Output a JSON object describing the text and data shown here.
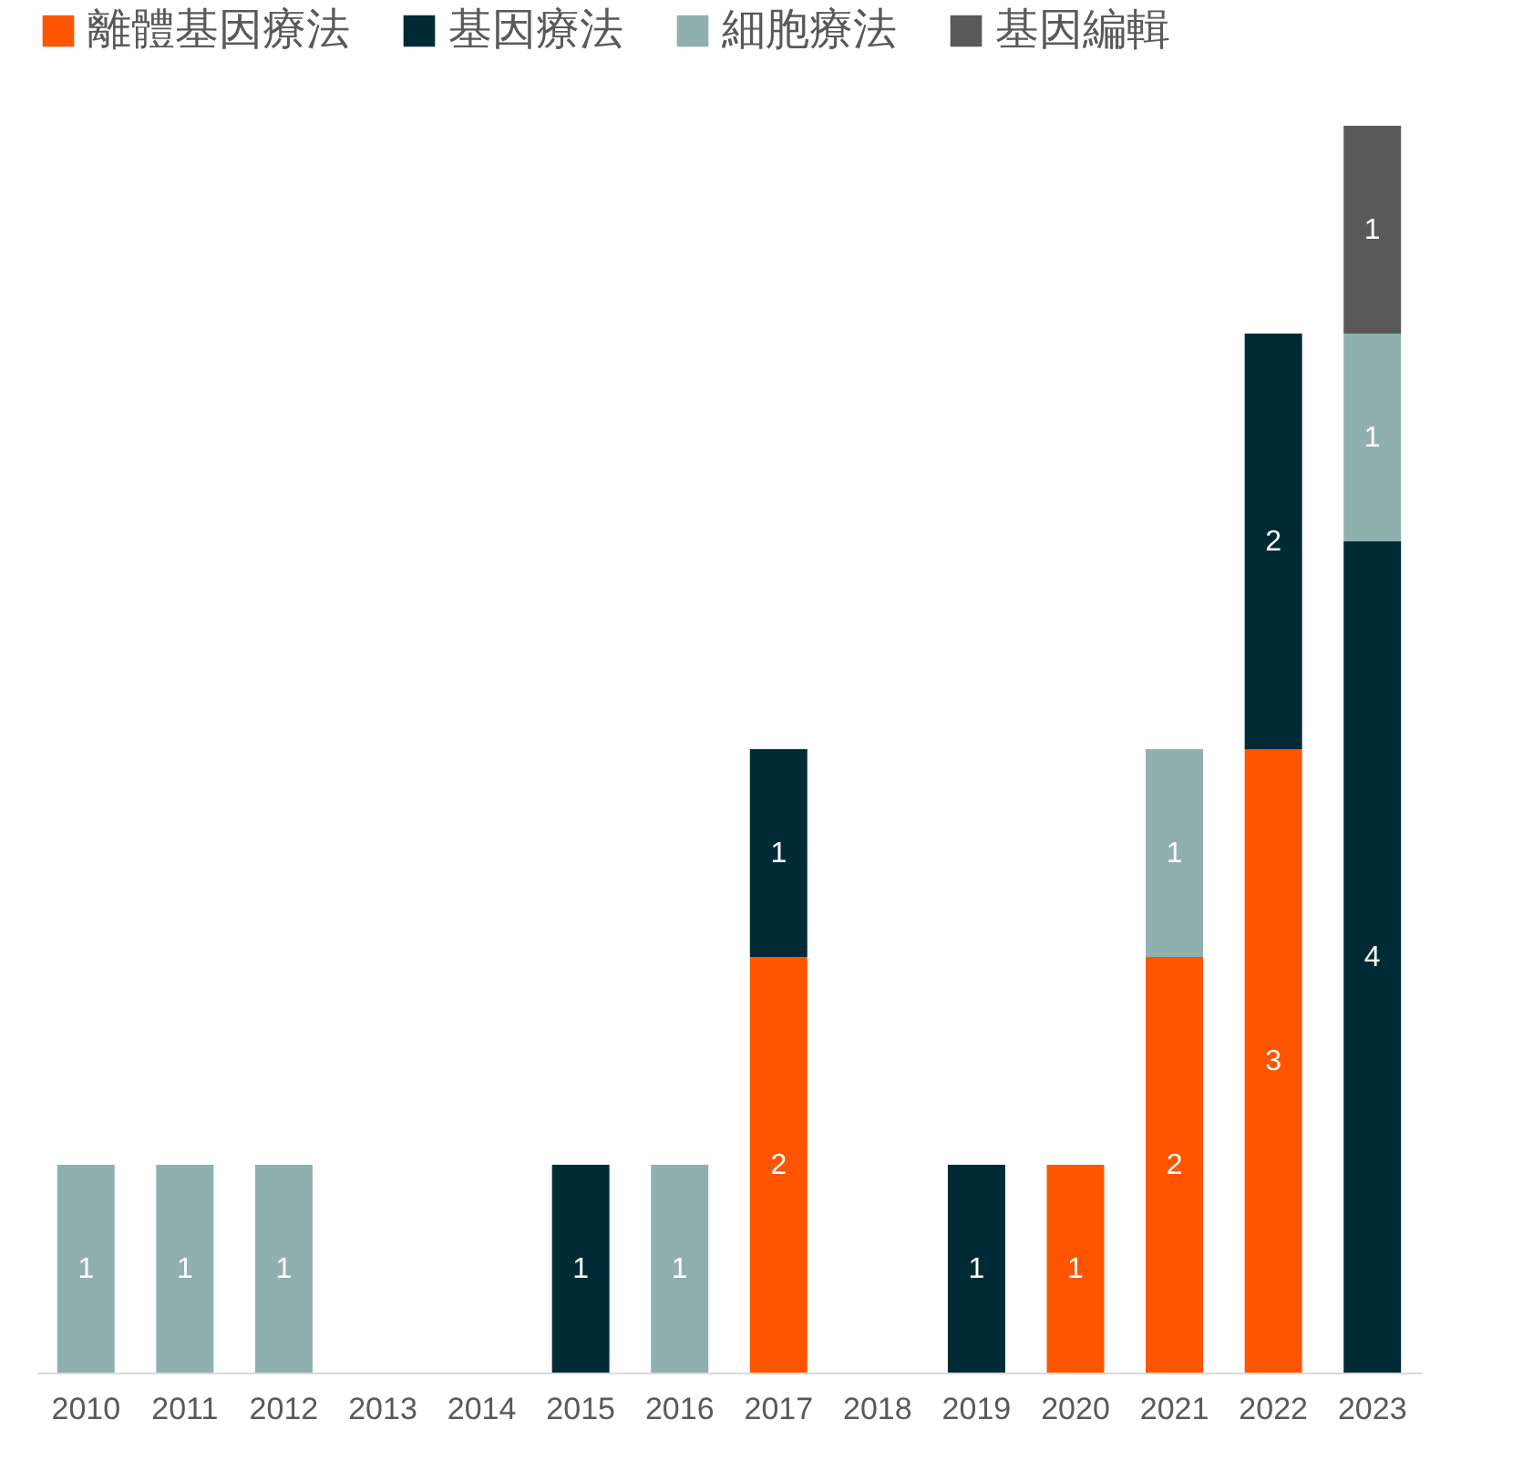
{
  "chart_data": {
    "type": "bar",
    "stacked": true,
    "data_labels": true,
    "legend": "top",
    "categories": [
      "2010",
      "2011",
      "2012",
      "2013",
      "2014",
      "2015",
      "2016",
      "2017",
      "2018",
      "2019",
      "2020",
      "2021",
      "2022",
      "2023"
    ],
    "series": [
      {
        "name": "離體基因療法",
        "color": "#ff5500",
        "values": [
          null,
          null,
          null,
          null,
          null,
          null,
          null,
          2,
          null,
          null,
          1,
          2,
          3,
          null
        ]
      },
      {
        "name": "基因療法",
        "color": "#002b36",
        "values": [
          null,
          null,
          null,
          null,
          null,
          1,
          null,
          1,
          null,
          1,
          null,
          null,
          2,
          4
        ]
      },
      {
        "name": "細胞療法",
        "color": "#8fb0ae",
        "values": [
          1,
          1,
          1,
          null,
          null,
          null,
          1,
          null,
          null,
          null,
          null,
          1,
          null,
          1
        ]
      },
      {
        "name": "基因編輯",
        "color": "#595959",
        "values": [
          null,
          null,
          null,
          null,
          null,
          null,
          null,
          null,
          null,
          null,
          null,
          null,
          null,
          1
        ]
      }
    ]
  }
}
